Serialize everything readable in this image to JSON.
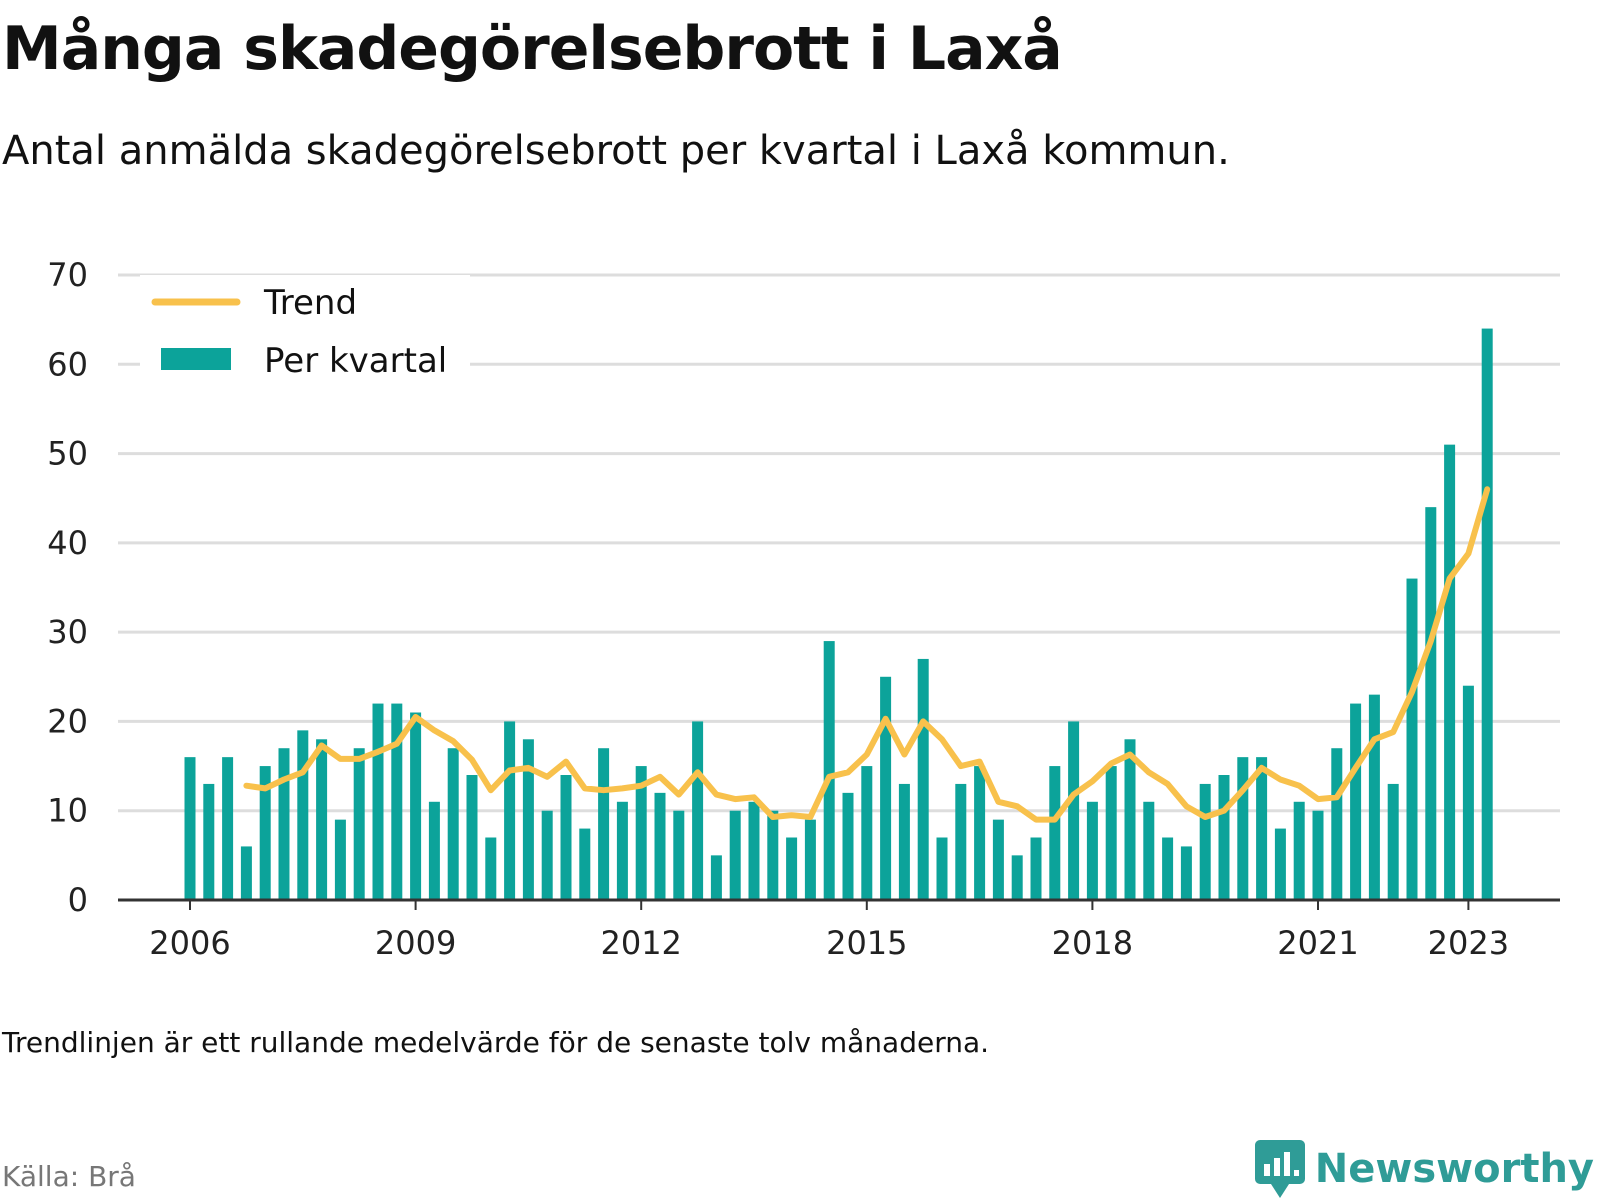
{
  "header": {
    "title": "Många skadegörelsebrott i Laxå",
    "subtitle": "Antal anmälda skadegörelsebrott per kvartal i Laxå kommun."
  },
  "footer": {
    "note": "Trendlinjen är ett rullande medelvärde för de senaste tolv månaderna.",
    "source": "Källa: Brå",
    "brand": "Newsworthy"
  },
  "colors": {
    "bar": "#0ca39a",
    "trend": "#f8c14c",
    "grid": "#dddddd",
    "axis": "#333333",
    "brand": "#2f9c97"
  },
  "chart_data": {
    "type": "bar",
    "x_start": "2006 Q1",
    "x_tick_labels": [
      "2006",
      "2009",
      "2012",
      "2015",
      "2018",
      "2021",
      "2023"
    ],
    "x_tick_years": [
      2006,
      2009,
      2012,
      2015,
      2018,
      2021,
      2023
    ],
    "y_ticks": [
      0,
      10,
      20,
      30,
      40,
      50,
      60,
      70
    ],
    "ylim": [
      0,
      70
    ],
    "grid": true,
    "legend_position": "top-left",
    "series": [
      {
        "name": "Per kvartal",
        "kind": "bar",
        "values": [
          16,
          13,
          16,
          6,
          15,
          17,
          19,
          18,
          9,
          17,
          22,
          22,
          21,
          11,
          17,
          14,
          7,
          20,
          18,
          10,
          14,
          8,
          17,
          11,
          15,
          12,
          10,
          20,
          5,
          10,
          11,
          10,
          7,
          9,
          29,
          12,
          15,
          25,
          13,
          27,
          7,
          13,
          15,
          9,
          5,
          7,
          15,
          20,
          11,
          15,
          18,
          11,
          7,
          6,
          13,
          14,
          16,
          16,
          8,
          11,
          10,
          17,
          22,
          23,
          13,
          36,
          44,
          51,
          24,
          64
        ]
      },
      {
        "name": "Trend",
        "kind": "line",
        "values": [
          null,
          null,
          null,
          12.8,
          12.5,
          13.5,
          14.3,
          17.3,
          15.8,
          15.8,
          16.6,
          17.5,
          20.5,
          19.0,
          17.8,
          15.7,
          12.3,
          14.5,
          14.8,
          13.8,
          15.5,
          12.5,
          12.3,
          12.5,
          12.8,
          13.8,
          11.8,
          14.3,
          11.8,
          11.3,
          11.5,
          9.3,
          9.5,
          9.3,
          13.8,
          14.3,
          16.3,
          20.3,
          16.3,
          20.0,
          18.0,
          15.0,
          15.5,
          11.0,
          10.5,
          9.0,
          9.0,
          11.8,
          13.3,
          15.3,
          16.3,
          14.3,
          13.0,
          10.5,
          9.3,
          10.0,
          12.3,
          14.8,
          13.5,
          12.8,
          11.3,
          11.5,
          14.8,
          18.0,
          18.8,
          23.3,
          29.0,
          36.0,
          38.8,
          46.0
        ]
      }
    ]
  }
}
